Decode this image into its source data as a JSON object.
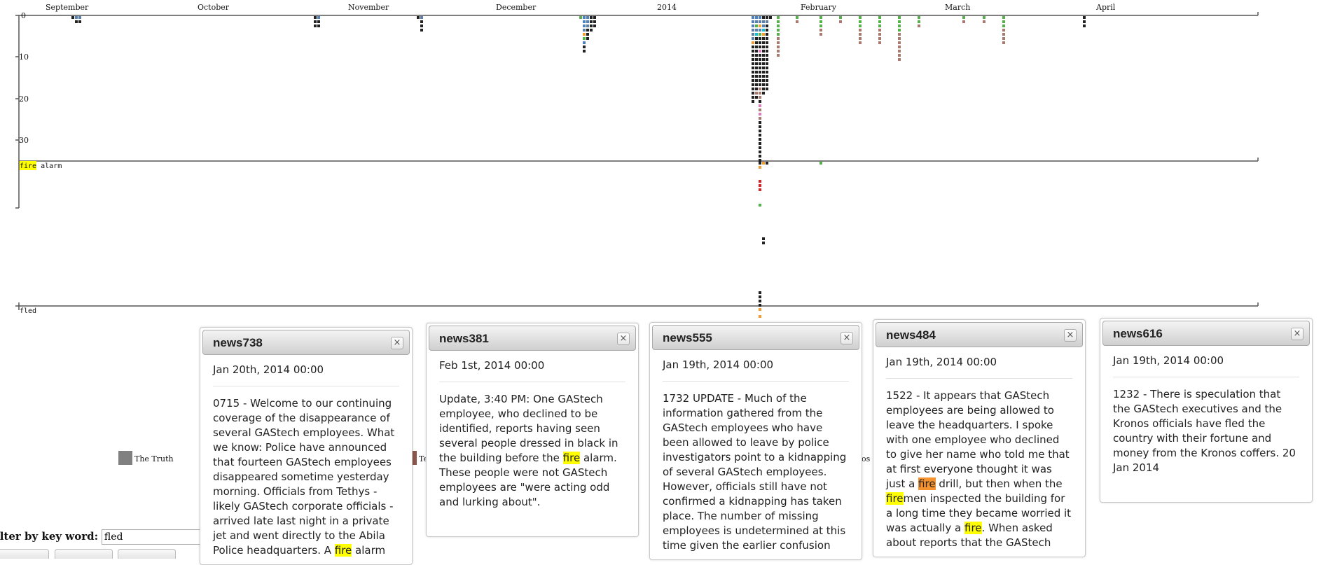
{
  "timeline": {
    "months": [
      "September",
      "October",
      "November",
      "December",
      "2014",
      "February",
      "March",
      "April"
    ],
    "y_ticks": [
      "0",
      "10",
      "20",
      "30"
    ],
    "panels": [
      {
        "keyword_hl": "fire",
        "keyword_rest": " alarm"
      },
      {
        "keyword_hl": "",
        "keyword_rest": "fled"
      }
    ]
  },
  "legend": {
    "items": [
      {
        "label": "The Truth",
        "color": "#808080"
      },
      {
        "label": "Te",
        "color": "#8c564b"
      },
      {
        "label": "os",
        "color": "#ffffff"
      }
    ]
  },
  "filter": {
    "label": "ilter by key word:",
    "value": "fled"
  },
  "cards": [
    {
      "title": "news738",
      "close": "×",
      "date": "Jan 20th, 2014 00:00",
      "body": [
        {
          "t": "0715 - Welcome to our continuing coverage of the disappearance of several GAStech employees. What we know: Police have announced that fourteen GAStech employees disappeared sometime yesterday morning. Officials from Tethys - likely GAStech corporate officials - arrived late last night in a private jet and went directly to the Abila Police headquarters. A "
        },
        {
          "t": "fire",
          "h": "y"
        },
        {
          "t": " alarm"
        }
      ]
    },
    {
      "title": "news381",
      "close": "×",
      "date": "Feb 1st, 2014 00:00",
      "body": [
        {
          "t": "Update, 3:40 PM: One GAStech employee, who declined to be identified, reports having seen several people dressed in black in the building before the "
        },
        {
          "t": "fire",
          "h": "y"
        },
        {
          "t": " alarm. These people were not GAStech employees are \"were acting odd and lurking about\"."
        }
      ]
    },
    {
      "title": "news555",
      "close": "×",
      "date": "Jan 19th, 2014 00:00",
      "body": [
        {
          "t": "1732 UPDATE - Much of the information gathered from the GAStech employees who have been allowed to leave by police investigators point to a kidnapping of several GAStech employees. However, officials still have not confirmed a kidnapping has taken place. The number of missing employees is undetermined at this time given the earlier confusion"
        }
      ]
    },
    {
      "title": "news484",
      "close": "×",
      "date": "Jan 19th, 2014 00:00",
      "body": [
        {
          "t": "1522 - It appears that GAStech employees are being allowed to leave the headquarters. I spoke with one employee who declined to give her name who told me that at first everyone thought it was just a "
        },
        {
          "t": "fire",
          "h": "o"
        },
        {
          "t": " drill, but then when the "
        },
        {
          "t": "fire",
          "h": "y"
        },
        {
          "t": "men inspected the building for a long time they became worried it was actually a "
        },
        {
          "t": "fire",
          "h": "y"
        },
        {
          "t": ". When asked about reports that the GAStech"
        }
      ]
    },
    {
      "title": "news616",
      "close": "×",
      "date": "Jan 19th, 2014 00:00",
      "body": [
        {
          "t": "1232 - There is speculation that the GAStech executives and the Kronos officials have fled the country with their fortune and money from the Kronos coffers. 20 Jan 2014"
        }
      ]
    }
  ],
  "colors": {
    "gastech_black": "#222222",
    "blue": "#4f81bd",
    "steel": "#5b7fa8",
    "orange": "#f39c34",
    "green": "#55b24a",
    "brown": "#a87a70",
    "red": "#d62728",
    "pink": "#e377c2",
    "cyan": "#17becf",
    "yellow_highlight": "#ffff00",
    "orange_highlight": "#f59331"
  }
}
